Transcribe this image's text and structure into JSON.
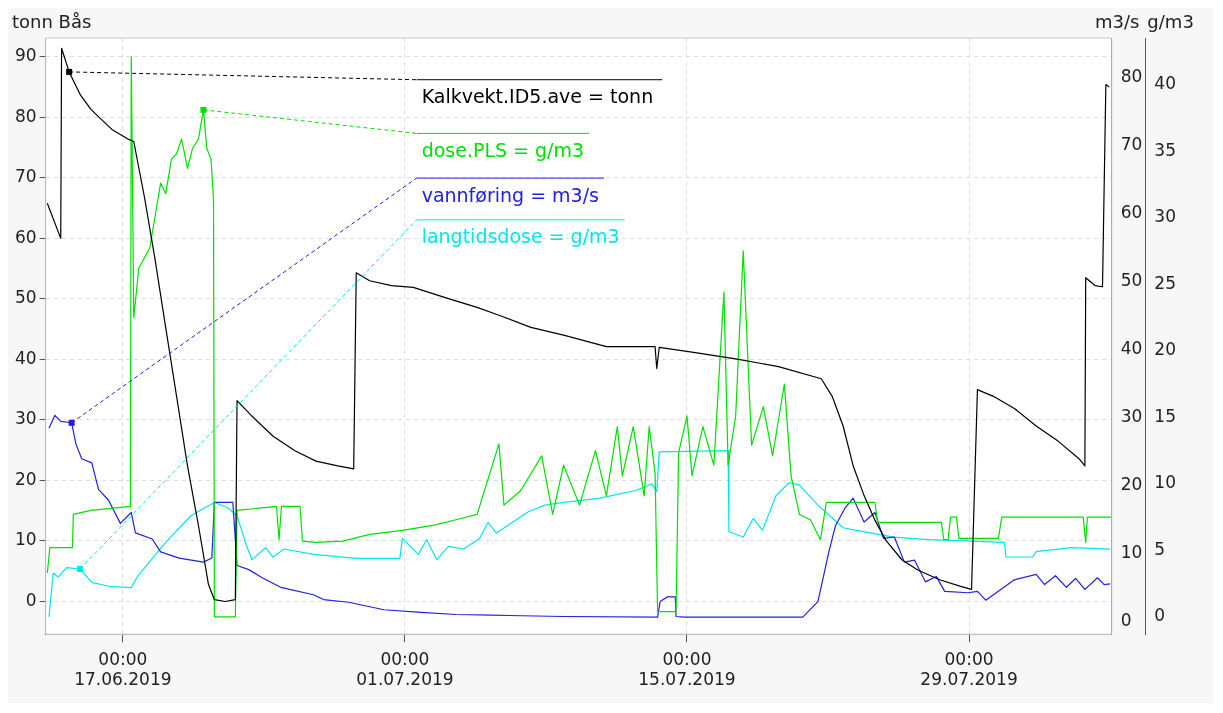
{
  "chart_data": {
    "type": "line",
    "ylabel": "tonn Bås",
    "y2label": "m3/s",
    "y3label": "g/m3",
    "grid": true,
    "legend": "top",
    "marker": "none",
    "line_style": "solid",
    "xlim": [
      "2019-06-13T04:00",
      "2019-08-05T02:00"
    ],
    "xticks": [
      {
        "value": "2019-06-17T00:00",
        "label": "00:00\n17.06.2019"
      },
      {
        "value": "2019-07-01T00:00",
        "label": "00:00\n01.07.2019"
      },
      {
        "value": "2019-07-15T00:00",
        "label": "00:00\n15.07.2019"
      },
      {
        "value": "2019-07-29T00:00",
        "label": "00:00\n29.07.2019"
      }
    ],
    "ylim": [
      -5.4,
      93.1
    ],
    "yticks": [
      0,
      10,
      20,
      30,
      40,
      50,
      60,
      70,
      80,
      90
    ],
    "y2lim": [
      -1.9,
      85.8
    ],
    "y2ticks": [
      0,
      10,
      20,
      30,
      40,
      50,
      60,
      70,
      80
    ],
    "y3lim": [
      -1.3,
      43.5
    ],
    "y3ticks": [
      0,
      5,
      10,
      15,
      20,
      25,
      30,
      35,
      40
    ],
    "series": [
      {
        "name": "Kalkvekt.ID5.ave = tonn",
        "color": "#000000",
        "x": [
          "2019-06-13T06:00",
          "2019-06-13T22:00",
          "2019-06-13T23:00",
          "2019-06-14T08:00",
          "2019-06-14T21:00",
          "2019-06-15T10:00",
          "2019-06-15T22:00",
          "2019-06-16T11:00",
          "2019-06-17T06:00",
          "2019-06-17T13:00",
          "2019-06-18T02:00",
          "2019-06-18T14:00",
          "2019-06-19T03:00",
          "2019-06-19T16:00",
          "2019-06-20T05:00",
          "2019-06-20T18:00",
          "2019-06-21T06:00",
          "2019-06-21T13:00",
          "2019-06-22T02:00",
          "2019-06-22T14:00",
          "2019-06-22T16:00",
          "2019-06-23T10:00",
          "2019-06-24T11:00",
          "2019-06-25T13:00",
          "2019-06-26T14:00",
          "2019-06-27T16:00",
          "2019-06-28T11:00",
          "2019-06-28T14:00",
          "2019-06-29T06:00",
          "2019-06-30T08:00",
          "2019-07-01T10:00",
          "2019-07-03T00:00",
          "2019-07-04T14:00",
          "2019-07-05T16:00",
          "2019-07-07T06:00",
          "2019-07-08T21:00",
          "2019-07-11T00:00",
          "2019-07-13T10:00",
          "2019-07-13T12:00",
          "2019-07-13T15:00",
          "2019-07-15T06:00",
          "2019-07-17T10:00",
          "2019-07-19T13:00",
          "2019-07-21T16:00",
          "2019-07-22T05:00",
          "2019-07-22T18:00",
          "2019-07-23T06:00",
          "2019-07-23T19:00",
          "2019-07-24T08:00",
          "2019-07-24T21:00",
          "2019-07-25T16:00",
          "2019-07-26T11:00",
          "2019-07-27T13:00",
          "2019-07-28T14:00",
          "2019-07-29T03:00",
          "2019-07-29T10:00",
          "2019-07-30T05:00",
          "2019-07-31T06:00",
          "2019-08-01T08:00",
          "2019-08-02T10:00",
          "2019-08-03T11:00",
          "2019-08-03T18:00",
          "2019-08-03T19:00",
          "2019-08-04T06:00",
          "2019-08-04T15:00",
          "2019-08-04T19:00",
          "2019-08-04T23:00"
        ],
        "values": [
          65.8,
          60,
          91.4,
          87.5,
          83.8,
          81.3,
          79.7,
          78,
          76.4,
          76,
          66.6,
          56.8,
          45.3,
          33.9,
          22.4,
          12.6,
          2.8,
          0.3,
          0,
          0.3,
          33.2,
          30.6,
          27.3,
          24.9,
          23.2,
          22.4,
          21.9,
          54.3,
          53,
          52.2,
          51.9,
          50.2,
          48.6,
          47.3,
          45.3,
          44,
          42.1,
          42.1,
          38.5,
          42,
          41.2,
          40.1,
          38.8,
          36.8,
          33.9,
          29,
          22.4,
          17.5,
          13.4,
          10.1,
          6.9,
          5.2,
          3.6,
          2.5,
          2,
          35,
          33.9,
          31.9,
          29,
          26.5,
          23.6,
          22.4,
          53.5,
          52.2,
          52,
          85.4,
          85
        ]
      },
      {
        "name": "dose.PLS = g/m3",
        "color": "#00e000",
        "axis": "y3",
        "x": [
          "2019-06-13T06:00",
          "2019-06-13T09:00",
          "2019-06-14T12:00",
          "2019-06-14T13:00",
          "2019-06-15T10:00",
          "2019-06-17T09:00",
          "2019-06-17T10:00",
          "2019-06-17T13:00",
          "2019-06-17T19:00",
          "2019-06-18T08:00",
          "2019-06-18T21:00",
          "2019-06-19T03:00",
          "2019-06-19T10:00",
          "2019-06-19T16:00",
          "2019-06-19T22:00",
          "2019-06-20T05:00",
          "2019-06-20T11:00",
          "2019-06-20T18:00",
          "2019-06-21T00:00",
          "2019-06-21T04:00",
          "2019-06-21T09:00",
          "2019-06-21T12:00",
          "2019-06-21T13:00",
          "2019-06-22T14:00",
          "2019-06-22T16:00",
          "2019-06-24T15:00",
          "2019-06-24T18:00",
          "2019-06-24T21:00",
          "2019-06-25T19:00",
          "2019-06-25T22:00",
          "2019-06-26T14:00",
          "2019-06-27T22:00",
          "2019-06-29T06:00",
          "2019-06-30T21:00",
          "2019-07-02T11:00",
          "2019-07-03T13:00",
          "2019-07-04T14:00",
          "2019-07-05T16:00",
          "2019-07-05T22:00",
          "2019-07-06T18:00",
          "2019-07-07T19:00",
          "2019-07-08T08:00",
          "2019-07-08T21:00",
          "2019-07-09T16:00",
          "2019-07-10T11:00",
          "2019-07-11T00:00",
          "2019-07-11T13:00",
          "2019-07-11T19:00",
          "2019-07-12T08:00",
          "2019-07-12T21:00",
          "2019-07-13T03:00",
          "2019-07-13T10:00",
          "2019-07-13T13:00",
          "2019-07-14T11:00",
          "2019-07-14T14:00",
          "2019-07-15T00:00",
          "2019-07-15T06:00",
          "2019-07-15T19:00",
          "2019-07-16T08:00",
          "2019-07-16T20:00",
          "2019-07-17T01:00",
          "2019-07-17T10:00",
          "2019-07-17T19:00",
          "2019-07-18T05:00",
          "2019-07-18T19:00",
          "2019-07-19T06:00",
          "2019-07-19T20:00",
          "2019-07-20T04:00",
          "2019-07-20T14:00",
          "2019-07-21T03:00",
          "2019-07-21T15:00",
          "2019-07-21T22:00",
          "2019-07-24T08:00",
          "2019-07-24T11:00",
          "2019-07-27T15:00",
          "2019-07-27T18:00",
          "2019-07-27T23:00",
          "2019-07-28T02:00",
          "2019-07-28T09:00",
          "2019-07-28T12:00",
          "2019-07-30T11:00",
          "2019-07-30T15:00",
          "2019-08-03T16:00",
          "2019-08-03T19:00",
          "2019-08-03T21:00",
          "2019-08-05T02:00"
        ],
        "values": [
          3.3,
          5.2,
          5.2,
          7.7,
          8.0,
          8.3,
          42.1,
          22.5,
          26.2,
          27.7,
          32.6,
          31.8,
          34.4,
          34.8,
          35.9,
          33.7,
          35.2,
          35.9,
          38.1,
          35.2,
          34.4,
          31.4,
          0,
          0,
          8.0,
          8.3,
          5.8,
          8.3,
          8.3,
          5.7,
          5.6,
          5.7,
          6.2,
          6.5,
          6.9,
          7.3,
          7.7,
          13.0,
          8.4,
          9.5,
          12.1,
          7.7,
          11.4,
          8.4,
          12.5,
          9.1,
          14.3,
          10.6,
          14.3,
          9.1,
          14.3,
          10.8,
          0.4,
          0.4,
          12.3,
          15.1,
          10.6,
          14.3,
          11.4,
          24.4,
          11.4,
          15.1,
          27.5,
          12.9,
          15.8,
          12.1,
          17.5,
          10.6,
          7.7,
          7.3,
          5.8,
          8.6,
          8.6,
          7.1,
          7.1,
          5.8,
          5.8,
          7.5,
          7.5,
          5.9,
          5.9,
          7.5,
          7.5,
          5.6,
          7.5,
          7.5
        ]
      },
      {
        "name": "vannføring = m3/s",
        "color": "#2020e6",
        "axis": "y2",
        "x": [
          "2019-06-13T08:00",
          "2019-06-13T15:00",
          "2019-06-13T22:00",
          "2019-06-14T11:00",
          "2019-06-14T16:00",
          "2019-06-14T23:00",
          "2019-06-15T11:00",
          "2019-06-15T19:00",
          "2019-06-16T07:00",
          "2019-06-16T21:00",
          "2019-06-17T10:00",
          "2019-06-17T15:00",
          "2019-06-18T11:00",
          "2019-06-18T21:00",
          "2019-06-19T19:00",
          "2019-06-21T00:00",
          "2019-06-21T10:00",
          "2019-06-21T13:00",
          "2019-06-22T11:00",
          "2019-06-22T16:00",
          "2019-06-23T06:00",
          "2019-06-23T22:00",
          "2019-06-24T20:00",
          "2019-06-26T11:00",
          "2019-06-26T23:00",
          "2019-06-28T05:00",
          "2019-06-29T23:00",
          "2019-07-01T19:00",
          "2019-07-03T13:00",
          "2019-07-05T07:00",
          "2019-07-08T21:00",
          "2019-07-13T13:00",
          "2019-07-13T16:00",
          "2019-07-14T01:00",
          "2019-07-14T10:00",
          "2019-07-14T11:00",
          "2019-07-14T21:00",
          "2019-07-20T18:00",
          "2019-07-21T12:00",
          "2019-07-22T01:00",
          "2019-07-22T09:00",
          "2019-07-22T20:00",
          "2019-07-23T06:00",
          "2019-07-23T19:00",
          "2019-07-24T08:00",
          "2019-07-24T18:00",
          "2019-07-25T07:00",
          "2019-07-25T19:00",
          "2019-07-26T07:00",
          "2019-07-26T20:00",
          "2019-07-27T09:00",
          "2019-07-27T19:00",
          "2019-07-28T23:00",
          "2019-07-29T10:00",
          "2019-07-29T20:00",
          "2019-07-31T06:00",
          "2019-08-01T08:00",
          "2019-08-01T18:00",
          "2019-08-02T07:00",
          "2019-08-02T20:00",
          "2019-08-03T07:00",
          "2019-08-03T18:00",
          "2019-08-04T09:00",
          "2019-08-04T17:00",
          "2019-08-05T00:00"
        ],
        "values": [
          28.4,
          30.3,
          29.4,
          29.2,
          26.1,
          23.9,
          23.3,
          19.4,
          17.8,
          14.4,
          16,
          13,
          12.1,
          10.2,
          9.3,
          8.7,
          9.3,
          17.5,
          17.5,
          8.2,
          7.6,
          6.4,
          5,
          3.9,
          3.2,
          2.8,
          1.7,
          1.3,
          1,
          0.9,
          0.7,
          0.6,
          2.9,
          3.6,
          3.6,
          0.7,
          0.6,
          0.6,
          2.9,
          10.2,
          14.1,
          16.6,
          18.1,
          14.6,
          16,
          12.2,
          12.4,
          8.7,
          9,
          5.8,
          6.6,
          4.4,
          4.2,
          4.4,
          3.1,
          6.1,
          6.9,
          5.4,
          6.7,
          5,
          6.3,
          4.7,
          6.4,
          5.4,
          5.5
        ]
      },
      {
        "name": "langtidsdose = g/m3",
        "color": "#00e5ee",
        "axis": "y3",
        "x": [
          "2019-06-13T08:00",
          "2019-06-13T13:00",
          "2019-06-13T19:00",
          "2019-06-14T05:00",
          "2019-06-14T21:00",
          "2019-06-15T11:00",
          "2019-06-16T07:00",
          "2019-06-17T10:00",
          "2019-06-17T17:00",
          "2019-06-19T03:00",
          "2019-06-20T09:00",
          "2019-06-21T13:00",
          "2019-06-22T05:00",
          "2019-06-22T16:00",
          "2019-06-23T03:00",
          "2019-06-23T10:00",
          "2019-06-24T02:00",
          "2019-06-24T11:00",
          "2019-06-25T00:00",
          "2019-06-26T11:00",
          "2019-06-28T14:00",
          "2019-06-30T18:00",
          "2019-06-30T21:00",
          "2019-07-01T16:00",
          "2019-07-02T02:00",
          "2019-07-02T14:00",
          "2019-07-03T04:00",
          "2019-07-03T22:00",
          "2019-07-04T17:00",
          "2019-07-05T03:00",
          "2019-07-05T13:00",
          "2019-07-07T03:00",
          "2019-07-07T23:00",
          "2019-07-08T21:00",
          "2019-07-10T15:00",
          "2019-07-12T11:00",
          "2019-07-13T06:00",
          "2019-07-13T12:00",
          "2019-07-13T15:00",
          "2019-07-17T01:00",
          "2019-07-17T02:00",
          "2019-07-17T19:00",
          "2019-07-18T07:00",
          "2019-07-18T18:00",
          "2019-07-19T10:00",
          "2019-07-20T02:00",
          "2019-07-20T14:00",
          "2019-07-21T12:00",
          "2019-07-22T18:00",
          "2019-07-23T10:00",
          "2019-07-25T06:00",
          "2019-07-27T00:00",
          "2019-07-30T18:00",
          "2019-07-30T20:00",
          "2019-08-01T04:00",
          "2019-08-01T08:00",
          "2019-08-03T02:00",
          "2019-08-05T00:00"
        ],
        "values": [
          0,
          3.3,
          3.0,
          3.7,
          3.6,
          2.6,
          2.3,
          2.2,
          3.0,
          5.6,
          7.6,
          8.6,
          8.2,
          7.6,
          5.4,
          4.3,
          5.2,
          4.5,
          5.1,
          4.7,
          4.4,
          4.4,
          5.9,
          4.7,
          5.8,
          4.3,
          5.3,
          5.1,
          5.9,
          7.1,
          6.3,
          7.9,
          8.4,
          8.6,
          8.9,
          9.5,
          10.0,
          9.4,
          12.4,
          12.5,
          6.4,
          6.0,
          7.4,
          6.5,
          9.1,
          10.1,
          9.9,
          8.4,
          6.7,
          6.5,
          6.0,
          5.8,
          5.6,
          4.5,
          4.5,
          4.9,
          5.2,
          5.1
        ]
      }
    ]
  }
}
